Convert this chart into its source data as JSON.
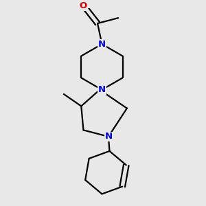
{
  "bg_color": "#e8e8e8",
  "bond_color": "#000000",
  "N_color": "#0000cc",
  "O_color": "#cc0000",
  "line_width": 1.6,
  "font_size": 9.5,
  "xlim": [
    -1.2,
    1.8
  ],
  "ylim": [
    -1.8,
    1.8
  ],
  "figsize": [
    3.0,
    3.0
  ],
  "dpi": 100
}
